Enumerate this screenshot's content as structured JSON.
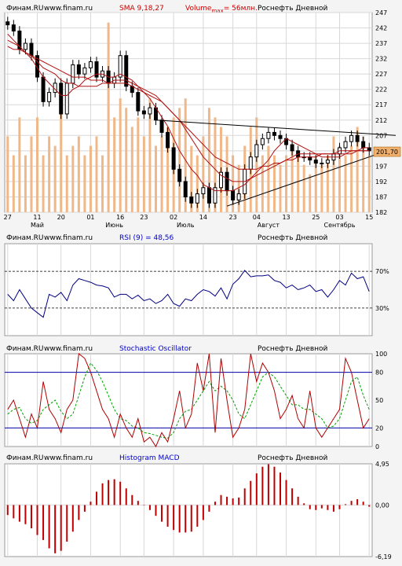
{
  "header_texts": {
    "source": "Финам.RU",
    "site": "www.finam.ru",
    "sma": "SMA 9,18,27",
    "volume_prefix": "Volume",
    "volume_sub": "max",
    "volume_suffix": "= 56млн.",
    "instrument": "Роснефть Дневной",
    "rsi": "RSI (9) = 48,56",
    "stochastic": "Stochastic Oscillator",
    "macd": "Histogram MACD"
  },
  "colors": {
    "background": "#f4f4f4",
    "plot_bg": "#ffffff",
    "grid": "#d8d8d8",
    "frame": "#9a9a9a",
    "text": "#000000",
    "indicator_title": "#0000cc",
    "price_title": "#cc0000",
    "candle": "#000000",
    "volume": "#f0b889",
    "sma": "#b01010",
    "rsi_line": "#000080",
    "stoch_k": "#b00000",
    "stoch_d": "#00a000",
    "stoch_level": "#0000aa",
    "macd_bar": "#c00000",
    "price_label_bg": "#f0b070",
    "trendline": "#000000"
  },
  "chart_data": [
    {
      "type": "candlestick",
      "title": "Роснефть Дневной",
      "indicator": "SMA 9,18,27",
      "ylim": [
        182,
        247
      ],
      "y_ticks": [
        182,
        187,
        192,
        197,
        202,
        207,
        212,
        217,
        222,
        227,
        232,
        237,
        242,
        247
      ],
      "last_price_label": "201,70",
      "x_tick_labels": [
        "27",
        "11",
        "20",
        "01",
        "16",
        "23",
        "02",
        "14",
        "23",
        "04",
        "13",
        "25",
        "03",
        "15"
      ],
      "month_labels": [
        "Май",
        "Июнь",
        "Июль",
        "Август",
        "Сентябрь"
      ],
      "series": [
        {
          "name": "Close",
          "values": [
            243,
            241,
            235,
            237,
            233,
            226,
            218,
            221,
            224,
            214,
            224,
            230,
            227,
            229,
            231,
            226,
            228,
            224,
            226,
            233,
            223,
            221,
            215,
            214,
            216,
            212,
            208,
            203,
            196,
            192,
            187,
            185,
            188,
            190,
            185,
            190,
            195,
            189,
            186,
            188,
            196,
            200,
            204,
            206,
            208,
            207,
            206,
            204,
            202,
            200,
            200,
            199,
            198,
            198,
            199,
            201,
            203,
            205,
            207,
            205,
            203,
            202
          ]
        },
        {
          "name": "SMA 9",
          "values": [
            240,
            238,
            236,
            234,
            232,
            229,
            226,
            224,
            222,
            220,
            220,
            222,
            223,
            225,
            226,
            227,
            227,
            226,
            226,
            227,
            226,
            225,
            223,
            221,
            219,
            216,
            213,
            210,
            206,
            202,
            199,
            196,
            194,
            191,
            190,
            189,
            189,
            189,
            189,
            190,
            191,
            193,
            195,
            197,
            199,
            202,
            204,
            206,
            205,
            204,
            203,
            202,
            201,
            200,
            200,
            200,
            200,
            201,
            202,
            202,
            203,
            203
          ]
        },
        {
          "name": "SMA 18",
          "values": [
            238,
            237,
            236,
            234,
            233,
            231,
            229,
            228,
            227,
            225,
            224,
            224,
            223,
            223,
            223,
            223,
            224,
            224,
            225,
            225,
            225,
            224,
            223,
            222,
            221,
            220,
            218,
            216,
            214,
            212,
            209,
            206,
            203,
            200,
            198,
            196,
            194,
            193,
            192,
            192,
            192,
            193,
            194,
            195,
            196,
            197,
            198,
            199,
            200,
            201,
            201,
            201,
            201,
            201,
            201,
            201,
            202,
            202,
            202,
            202,
            202,
            202
          ]
        },
        {
          "name": "SMA 27",
          "values": [
            236,
            235,
            235,
            234,
            233,
            232,
            231,
            230,
            229,
            228,
            227,
            226,
            226,
            226,
            225,
            225,
            225,
            224,
            224,
            224,
            224,
            223,
            222,
            221,
            220,
            219,
            218,
            216,
            214,
            212,
            210,
            208,
            206,
            204,
            202,
            200,
            199,
            198,
            197,
            196,
            196,
            196,
            196,
            197,
            197,
            198,
            198,
            199,
            199,
            200,
            200,
            200,
            200,
            201,
            201,
            201,
            201,
            201,
            201,
            202,
            202,
            202
          ]
        },
        {
          "name": "Volume",
          "values": [
            0.4,
            0.3,
            0.5,
            0.3,
            0.4,
            0.5,
            0.3,
            0.4,
            0.35,
            0.6,
            0.3,
            0.35,
            0.4,
            0.3,
            0.35,
            0.4,
            0.3,
            1.0,
            0.5,
            0.6,
            0.55,
            0.45,
            0.5,
            0.4,
            0.6,
            0.35,
            0.4,
            0.45,
            0.5,
            0.55,
            0.6,
            0.35,
            0.3,
            0.4,
            0.55,
            0.5,
            0.45,
            0.4,
            0.3,
            0.25,
            0.35,
            0.45,
            0.5,
            0.3,
            0.35,
            0.3,
            0.25,
            0.3,
            0.35,
            0.3,
            0.25,
            0.2,
            0.3,
            0.25,
            0.3,
            0.4,
            0.35,
            0.3,
            0.35,
            0.45,
            0.4,
            0.3
          ]
        }
      ]
    },
    {
      "type": "line",
      "title": "RSI (9) = 48,56",
      "ylim": [
        0,
        100
      ],
      "y_ticks": [
        70,
        30
      ],
      "y_tick_labels": [
        "70%",
        "30%"
      ],
      "levels": [
        70,
        30
      ],
      "series": [
        {
          "name": "RSI (9)",
          "values": [
            45,
            38,
            50,
            40,
            30,
            25,
            20,
            45,
            42,
            47,
            38,
            55,
            62,
            60,
            58,
            55,
            54,
            52,
            42,
            45,
            45,
            40,
            44,
            38,
            40,
            35,
            38,
            45,
            35,
            32,
            40,
            38,
            45,
            50,
            48,
            43,
            52,
            40,
            56,
            62,
            71,
            64,
            65,
            65,
            66,
            60,
            58,
            52,
            55,
            50,
            52,
            55,
            48,
            50,
            42,
            50,
            60,
            55,
            68,
            62,
            64,
            48
          ]
        }
      ]
    },
    {
      "type": "line",
      "title": "Stochastic Oscillator",
      "ylim": [
        0,
        100
      ],
      "y_ticks": [
        100,
        80,
        50,
        20,
        0
      ],
      "levels": [
        80,
        20
      ],
      "series": [
        {
          "name": "%K",
          "values": [
            40,
            50,
            30,
            10,
            35,
            20,
            70,
            40,
            30,
            15,
            40,
            50,
            100,
            95,
            80,
            60,
            40,
            30,
            10,
            35,
            20,
            10,
            30,
            5,
            10,
            0,
            15,
            5,
            30,
            60,
            20,
            35,
            90,
            60,
            100,
            15,
            95,
            50,
            10,
            20,
            40,
            100,
            70,
            90,
            80,
            60,
            30,
            40,
            55,
            30,
            20,
            60,
            20,
            10,
            20,
            30,
            40,
            95,
            80,
            50,
            20,
            30
          ]
        },
        {
          "name": "%D",
          "values": [
            35,
            40,
            42,
            30,
            25,
            28,
            40,
            45,
            50,
            38,
            30,
            35,
            55,
            75,
            90,
            82,
            70,
            55,
            40,
            30,
            28,
            22,
            20,
            15,
            14,
            12,
            10,
            9,
            15,
            30,
            38,
            40,
            50,
            60,
            70,
            60,
            65,
            60,
            50,
            35,
            30,
            45,
            60,
            75,
            80,
            75,
            65,
            55,
            45,
            45,
            40,
            40,
            35,
            30,
            20,
            22,
            30,
            50,
            70,
            75,
            55,
            40
          ]
        }
      ]
    },
    {
      "type": "bar",
      "title": "Histogram MACD",
      "ylim": [
        -6.19,
        4.95
      ],
      "y_ticks": [
        4.95,
        0.0,
        -6.19
      ],
      "y_tick_labels": [
        "4,95",
        "0,00",
        "-6,19"
      ],
      "series": [
        {
          "name": "MACD",
          "values": [
            -1.2,
            -1.6,
            -2.0,
            -2.3,
            -2.8,
            -3.6,
            -4.2,
            -5.2,
            -5.8,
            -5.5,
            -4.4,
            -3.2,
            -1.8,
            -0.8,
            0.4,
            1.6,
            2.6,
            3.0,
            3.1,
            2.8,
            2.0,
            1.2,
            0.5,
            0.0,
            -0.6,
            -1.3,
            -2.0,
            -2.6,
            -3.0,
            -3.3,
            -3.3,
            -3.2,
            -2.6,
            -1.8,
            -0.8,
            0.4,
            1.2,
            1.0,
            0.8,
            0.9,
            2.0,
            2.9,
            3.8,
            4.6,
            4.9,
            4.6,
            3.9,
            3.0,
            2.0,
            1.0,
            0.2,
            -0.5,
            -0.6,
            -0.4,
            -0.6,
            -0.8,
            -0.5,
            0.1,
            0.5,
            0.7,
            0.4,
            -0.2
          ]
        }
      ]
    }
  ]
}
